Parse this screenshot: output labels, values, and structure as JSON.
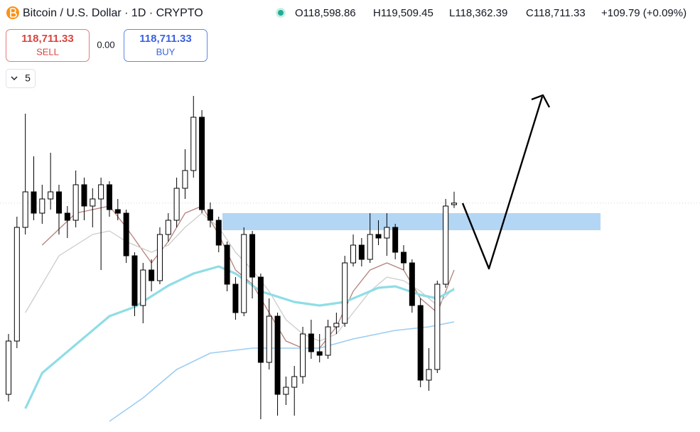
{
  "header": {
    "title": "Bitcoin / U.S. Dollar · 1D · CRYPTO",
    "ohlc": [
      "O118,598.86",
      "H119,509.45",
      "L118,362.39",
      "C118,711.33"
    ],
    "change": "+109.79 (+0.09%)"
  },
  "trade": {
    "sell_price": "118,711.33",
    "sell_label": "SELL",
    "spread": "0.00",
    "buy_price": "118,711.33",
    "buy_label": "BUY"
  },
  "indicator_count": "5",
  "chart_data": {
    "type": "candlestick",
    "ylim": [
      103000,
      127000
    ],
    "up_color": "#ffffff",
    "down_color": "#000000",
    "open": [
      105250,
      109000,
      117000,
      119500,
      118000,
      119000,
      119500,
      118000,
      117500,
      120000,
      118500,
      119000,
      120000,
      118250,
      118000,
      115000,
      111500,
      114000,
      113250,
      116500,
      117500,
      119750,
      121000,
      124750,
      118250,
      117500,
      115750,
      113000,
      111000,
      116500,
      113500,
      107500,
      110750,
      105250,
      105750,
      106500,
      109500,
      108250,
      108000,
      110000,
      110250,
      114500,
      115750,
      114750,
      116500,
      116250,
      117000,
      115250,
      114500,
      111500,
      106250,
      107000,
      113000,
      118598.86
    ],
    "high": [
      109500,
      117750,
      125000,
      122000,
      120000,
      122250,
      120000,
      118500,
      121000,
      120500,
      119750,
      120500,
      120250,
      119000,
      118250,
      115250,
      114500,
      114750,
      117000,
      118000,
      120500,
      122500,
      126250,
      125250,
      118750,
      117750,
      116000,
      113500,
      117000,
      116750,
      113750,
      112000,
      111000,
      106500,
      107250,
      110000,
      110500,
      109500,
      110500,
      111000,
      115000,
      116500,
      116250,
      118000,
      117500,
      118000,
      117250,
      115750,
      114750,
      112000,
      108500,
      113250,
      119000,
      119509.45
    ],
    "low": [
      104750,
      108500,
      116500,
      117500,
      117250,
      118250,
      116500,
      116250,
      117000,
      117500,
      117000,
      114000,
      117750,
      117500,
      114500,
      110750,
      110250,
      112500,
      113000,
      116000,
      117000,
      119000,
      120500,
      118000,
      117000,
      115250,
      112500,
      110500,
      110750,
      112000,
      103500,
      107000,
      103750,
      104500,
      103750,
      106000,
      107750,
      107500,
      107750,
      109500,
      110000,
      114250,
      114250,
      114500,
      115750,
      115000,
      114750,
      114000,
      111000,
      105750,
      105500,
      106750,
      112750,
      118362.39
    ],
    "close": [
      109000,
      117000,
      119500,
      118000,
      119000,
      119500,
      118000,
      117500,
      120000,
      118500,
      119000,
      120000,
      118250,
      118000,
      115000,
      111500,
      114000,
      113250,
      116500,
      117500,
      119750,
      121000,
      124750,
      118250,
      117500,
      115750,
      113000,
      111000,
      116500,
      113500,
      107500,
      110750,
      105250,
      105750,
      106500,
      109500,
      108250,
      108000,
      110000,
      110250,
      114500,
      115750,
      114750,
      116500,
      116250,
      117000,
      115250,
      114500,
      111500,
      106250,
      107000,
      113000,
      118500,
      118711.33
    ],
    "series": [
      {
        "color": "#b5807b",
        "width": 1.3,
        "x": [
          4,
          8,
          12,
          14,
          17,
          19,
          21,
          23,
          25,
          27,
          29,
          31,
          33,
          35,
          37,
          39,
          41,
          43,
          45,
          47,
          49,
          51,
          53
        ],
        "values": [
          115750,
          118000,
          118500,
          117000,
          114500,
          116000,
          118000,
          118500,
          116500,
          114000,
          113000,
          111000,
          109000,
          108500,
          108500,
          110000,
          112500,
          114000,
          114500,
          114000,
          112000,
          111000,
          114000
        ]
      },
      {
        "color": "#cccccc",
        "width": 1.3,
        "x": [
          2,
          6,
          10,
          12,
          14,
          17,
          19,
          21,
          23,
          25,
          27,
          29,
          31,
          33,
          35,
          37,
          39,
          41,
          43,
          45,
          47,
          49,
          51,
          53
        ],
        "values": [
          111000,
          115000,
          116500,
          116750,
          116000,
          115250,
          115750,
          117000,
          118000,
          117000,
          115250,
          114000,
          112500,
          110500,
          109500,
          109000,
          109500,
          111000,
          112500,
          113500,
          113250,
          112500,
          111500,
          112750
        ]
      },
      {
        "color": "#8fdde6",
        "width": 3.2,
        "x": [
          2,
          4,
          8,
          12,
          15,
          19,
          22,
          25,
          27,
          30,
          34,
          37,
          40,
          44,
          46,
          49,
          51,
          53
        ],
        "values": [
          104250,
          106750,
          108750,
          110750,
          111400,
          112900,
          113750,
          114250,
          113750,
          112500,
          111750,
          111500,
          111750,
          112750,
          112850,
          112250,
          112000,
          112650
        ]
      },
      {
        "color": "#9ccdf0",
        "width": 1.6,
        "x": [
          12,
          16,
          20,
          24,
          29,
          33,
          37,
          41,
          46,
          50,
          53
        ],
        "values": [
          103350,
          105000,
          107000,
          108150,
          108500,
          108500,
          108500,
          109150,
          109750,
          110000,
          110350
        ]
      }
    ],
    "zone": {
      "low": 116800,
      "high": 118000,
      "color": "#b3d6f5"
    }
  }
}
